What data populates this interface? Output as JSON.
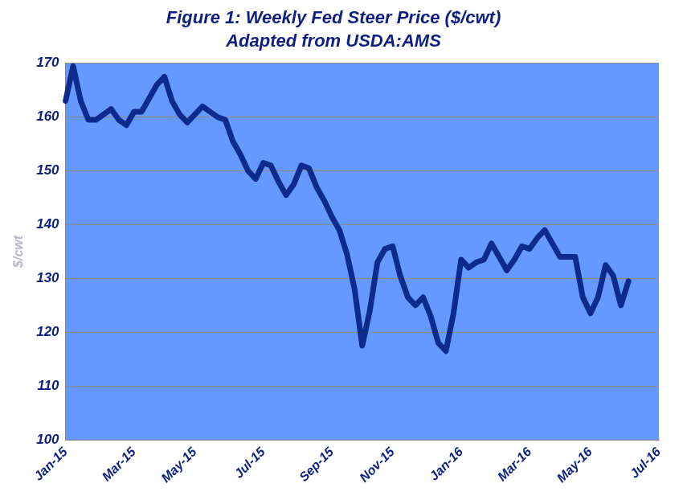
{
  "chart_data": {
    "type": "line",
    "title": "Figure 1: Weekly Fed Steer Price ($/cwt)",
    "subtitle": "Adapted from USDA:AMS",
    "y_label": "$/cwt",
    "categories": [
      "Jan-15",
      null,
      null,
      null,
      null,
      null,
      null,
      null,
      null,
      "Mar-15",
      null,
      null,
      null,
      null,
      null,
      null,
      null,
      "May-15",
      null,
      null,
      null,
      null,
      null,
      null,
      null,
      null,
      "Jul-15",
      null,
      null,
      null,
      null,
      null,
      null,
      null,
      null,
      "Sep-15",
      null,
      null,
      null,
      null,
      null,
      null,
      null,
      "Nov-15",
      null,
      null,
      null,
      null,
      null,
      null,
      null,
      null,
      "Jan-16",
      null,
      null,
      null,
      null,
      null,
      null,
      null,
      null,
      "Mar-16",
      null,
      null,
      null,
      null,
      null,
      null,
      null,
      "May-16",
      null,
      null,
      null,
      null,
      null,
      null,
      null,
      null,
      "Jul-16"
    ],
    "values": [
      163,
      169.5,
      163,
      159.5,
      159.5,
      160.5,
      161.5,
      159.5,
      158.5,
      161,
      161,
      163.5,
      166,
      167.5,
      163,
      160.5,
      159,
      160.5,
      162,
      161,
      160,
      159.5,
      155.5,
      153,
      150,
      148.5,
      151.5,
      151,
      148,
      145.5,
      147.5,
      151,
      150.5,
      147,
      144.5,
      141.5,
      139,
      134.5,
      128,
      117.5,
      124,
      133,
      135.5,
      136,
      130.5,
      126.5,
      125,
      126.5,
      123,
      118,
      116.5,
      123.5,
      133.5,
      132,
      133,
      133.5,
      136.5,
      134,
      131.5,
      133.5,
      136,
      135.5,
      137.5,
      139,
      136.5,
      134,
      134,
      134,
      126.5,
      123.5,
      126.5,
      132.5,
      130.5,
      125,
      129.5,
      null,
      null,
      null,
      null
    ],
    "color": "#0d2b8c",
    "ylim": [
      100,
      170
    ],
    "yticks": [
      100,
      110,
      120,
      130,
      140,
      150,
      160,
      170
    ],
    "grid": true
  }
}
